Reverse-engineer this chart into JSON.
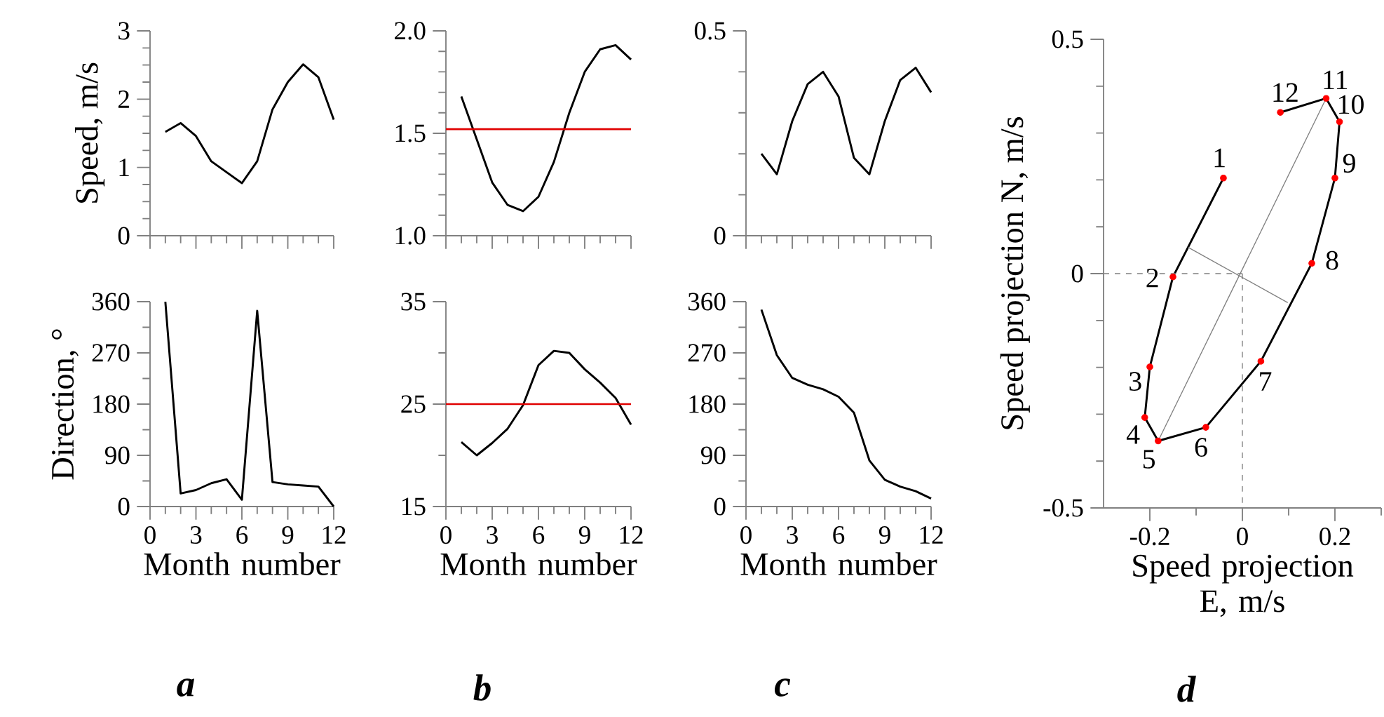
{
  "chart_data": [
    {
      "type": "line",
      "ylabel": "Speed, m/s",
      "x": [
        1,
        2,
        3,
        4,
        5,
        6,
        7,
        8,
        9,
        10,
        11,
        12
      ],
      "series": [
        {
          "color": "#000000",
          "values": [
            1.52,
            1.65,
            1.46,
            1.09,
            0.93,
            0.77,
            1.09,
            1.85,
            2.25,
            2.51,
            2.32,
            1.7
          ]
        }
      ],
      "xlim": [
        0,
        12
      ],
      "ylim": [
        0,
        3
      ],
      "xticks": [
        0,
        {
          "value": 1,
          "label": null
        },
        {
          "value": 2,
          "label": null
        },
        3,
        {
          "value": 4,
          "label": null
        },
        {
          "value": 5,
          "label": null
        },
        6,
        {
          "value": 7,
          "label": null
        },
        {
          "value": 8,
          "label": null
        },
        9,
        {
          "value": 10,
          "label": null
        },
        {
          "value": 11,
          "label": null
        },
        12
      ],
      "yticks": [
        0,
        {
          "value": 0.25,
          "label": null
        },
        {
          "value": 0.5,
          "label": null
        },
        {
          "value": 0.75,
          "label": null
        },
        1,
        {
          "value": 1.25,
          "label": null
        },
        {
          "value": 1.5,
          "label": null
        },
        {
          "value": 1.75,
          "label": null
        },
        2,
        {
          "value": 2.25,
          "label": null
        },
        {
          "value": 2.5,
          "label": null
        },
        {
          "value": 2.75,
          "label": null
        },
        3
      ],
      "tick_labels": "y"
    },
    {
      "type": "line",
      "x": [
        1,
        2,
        3,
        4,
        5,
        6,
        7,
        8,
        9,
        10,
        11,
        12
      ],
      "series": [
        {
          "color": "#000000",
          "values": [
            1.68,
            1.47,
            1.26,
            1.15,
            1.12,
            1.19,
            1.36,
            1.6,
            1.8,
            1.91,
            1.93,
            1.86
          ]
        }
      ],
      "xlim": [
        0,
        12
      ],
      "ylim": [
        1.0,
        2.0
      ],
      "xticks": [
        0,
        {
          "value": 1,
          "label": null
        },
        {
          "value": 2,
          "label": null
        },
        3,
        {
          "value": 4,
          "label": null
        },
        {
          "value": 5,
          "label": null
        },
        6,
        {
          "value": 7,
          "label": null
        },
        {
          "value": 8,
          "label": null
        },
        9,
        {
          "value": 10,
          "label": null
        },
        {
          "value": 11,
          "label": null
        },
        12
      ],
      "yticks": [
        {
          "value": 1.0,
          "label": "1.0"
        },
        {
          "value": 1.1,
          "label": null
        },
        {
          "value": 1.2,
          "label": null
        },
        {
          "value": 1.3,
          "label": null
        },
        {
          "value": 1.4,
          "label": null
        },
        1.5,
        {
          "value": 1.6,
          "label": null
        },
        {
          "value": 1.7,
          "label": null
        },
        {
          "value": 1.8,
          "label": null
        },
        {
          "value": 1.9,
          "label": null
        },
        {
          "value": 2.0,
          "label": "2.0"
        }
      ],
      "ref_lines": [
        {
          "axis": "y",
          "value": 1.52,
          "color": "#e00000"
        }
      ],
      "tick_labels": "y"
    },
    {
      "type": "line",
      "x": [
        1,
        2,
        3,
        4,
        5,
        6,
        7,
        8,
        9,
        10,
        11,
        12
      ],
      "series": [
        {
          "color": "#000000",
          "values": [
            0.2,
            0.15,
            0.28,
            0.37,
            0.4,
            0.34,
            0.19,
            0.15,
            0.28,
            0.38,
            0.41,
            0.35
          ]
        }
      ],
      "xlim": [
        0,
        12
      ],
      "ylim": [
        0,
        0.5
      ],
      "xticks": [
        0,
        {
          "value": 1,
          "label": null
        },
        {
          "value": 2,
          "label": null
        },
        3,
        {
          "value": 4,
          "label": null
        },
        {
          "value": 5,
          "label": null
        },
        6,
        {
          "value": 7,
          "label": null
        },
        {
          "value": 8,
          "label": null
        },
        9,
        {
          "value": 10,
          "label": null
        },
        {
          "value": 11,
          "label": null
        },
        12
      ],
      "yticks": [
        0,
        {
          "value": 0.1,
          "label": null
        },
        {
          "value": 0.2,
          "label": null
        },
        {
          "value": 0.3,
          "label": null
        },
        {
          "value": 0.4,
          "label": null
        },
        0.5
      ],
      "tick_labels": "y"
    },
    {
      "type": "line",
      "xlabel": "Speed projection E, m/s",
      "ylabel": "Speed projection N, m/s",
      "x": [
        -0.041,
        -0.15,
        -0.2,
        -0.211,
        -0.182,
        -0.079,
        0.04,
        0.15,
        0.2,
        0.21,
        0.181,
        0.082
      ],
      "series": [
        {
          "color": "#000000",
          "values": [
            0.204,
            -0.007,
            -0.199,
            -0.307,
            -0.357,
            -0.328,
            -0.187,
            0.022,
            0.204,
            0.324,
            0.374,
            0.344
          ]
        },
        {
          "type": "scatter",
          "marker": "circle",
          "color": "#ff0000",
          "values": [
            0.204,
            -0.007,
            -0.199,
            -0.307,
            -0.357,
            -0.328,
            -0.187,
            0.022,
            0.204,
            0.324,
            0.374,
            0.344
          ]
        },
        {
          "color": "#808080",
          "x": [
            -0.182,
            0.181
          ],
          "values": [
            -0.357,
            0.374
          ]
        },
        {
          "color": "#808080",
          "x": [
            -0.117,
            0.098
          ],
          "values": [
            0.056,
            -0.062
          ]
        },
        {
          "color": "#808080",
          "line_style": "dashed",
          "x": [
            -0.3,
            0
          ],
          "values": [
            0,
            0
          ]
        },
        {
          "color": "#808080",
          "line_style": "dashed",
          "x": [
            0,
            0
          ],
          "values": [
            0,
            -0.5
          ]
        }
      ],
      "xlim": [
        -0.3,
        0.3
      ],
      "ylim": [
        -0.5,
        0.5
      ],
      "xticks": [
        -0.2,
        {
          "value": -0.1,
          "label": null
        },
        0,
        {
          "value": 0.1,
          "label": null
        },
        0.2,
        {
          "value": 0.3,
          "label": null
        }
      ],
      "yticks": [
        -0.5,
        {
          "value": -0.4,
          "label": null
        },
        {
          "value": -0.3,
          "label": null
        },
        {
          "value": -0.2,
          "label": null
        },
        {
          "value": -0.1,
          "label": null
        },
        0,
        {
          "value": 0.1,
          "label": null
        },
        {
          "value": 0.2,
          "label": null
        },
        {
          "value": 0.3,
          "label": null
        },
        {
          "value": 0.4,
          "label": null
        },
        0.5
      ],
      "annotations": [
        "d",
        {
          "text": "1",
          "x": -0.041,
          "y": 0.204
        },
        {
          "text": "2",
          "x": -0.15,
          "y": -0.007
        },
        {
          "text": "3",
          "x": -0.2,
          "y": -0.199
        },
        {
          "text": "4",
          "x": -0.211,
          "y": -0.307
        },
        {
          "text": "5",
          "x": -0.182,
          "y": -0.357
        },
        {
          "text": "6",
          "x": -0.079,
          "y": -0.328
        },
        {
          "text": "7",
          "x": 0.04,
          "y": -0.187
        },
        {
          "text": "8",
          "x": 0.15,
          "y": 0.022
        },
        {
          "text": "9",
          "x": 0.2,
          "y": 0.204
        },
        {
          "text": "10",
          "x": 0.21,
          "y": 0.324
        },
        {
          "text": "11",
          "x": 0.181,
          "y": 0.374
        },
        {
          "text": "12",
          "x": 0.082,
          "y": 0.344
        }
      ]
    },
    {
      "type": "line",
      "xlabel": "Month number",
      "ylabel": "Direction, °",
      "x": [
        1,
        2,
        3,
        4,
        5,
        6,
        7,
        8,
        9,
        10,
        11,
        12
      ],
      "series": [
        {
          "color": "#000000",
          "values": [
            360,
            23,
            29,
            41,
            48,
            12,
            344,
            43,
            39,
            37,
            35,
            0
          ]
        }
      ],
      "xlim": [
        0,
        12
      ],
      "ylim": [
        0,
        360
      ],
      "xticks": [
        0,
        {
          "value": 1,
          "label": null
        },
        {
          "value": 2,
          "label": null
        },
        3,
        {
          "value": 4,
          "label": null
        },
        {
          "value": 5,
          "label": null
        },
        6,
        {
          "value": 7,
          "label": null
        },
        {
          "value": 8,
          "label": null
        },
        9,
        {
          "value": 10,
          "label": null
        },
        {
          "value": 11,
          "label": null
        },
        12
      ],
      "yticks": [
        0,
        {
          "value": 45,
          "label": null
        },
        90,
        {
          "value": 135,
          "label": null
        },
        180,
        {
          "value": 225,
          "label": null
        },
        270,
        {
          "value": 315,
          "label": null
        },
        360
      ],
      "annotations": [
        "a"
      ]
    },
    {
      "type": "line",
      "xlabel": "Month number",
      "x": [
        1,
        2,
        3,
        4,
        5,
        6,
        7,
        8,
        9,
        10,
        11,
        12
      ],
      "series": [
        {
          "color": "#000000",
          "values": [
            21.3,
            20.0,
            21.2,
            22.6,
            24.9,
            28.8,
            30.2,
            30.0,
            28.4,
            27.1,
            25.6,
            23.0
          ]
        }
      ],
      "xlim": [
        0,
        12
      ],
      "ylim": [
        15,
        35
      ],
      "xticks": [
        0,
        {
          "value": 1,
          "label": null
        },
        {
          "value": 2,
          "label": null
        },
        3,
        {
          "value": 4,
          "label": null
        },
        {
          "value": 5,
          "label": null
        },
        6,
        {
          "value": 7,
          "label": null
        },
        {
          "value": 8,
          "label": null
        },
        9,
        {
          "value": 10,
          "label": null
        },
        {
          "value": 11,
          "label": null
        },
        12
      ],
      "yticks": [
        15,
        {
          "value": 20,
          "label": null
        },
        25,
        {
          "value": 30,
          "label": null
        },
        35
      ],
      "ref_lines": [
        {
          "axis": "y",
          "value": 25,
          "color": "#e00000"
        }
      ],
      "annotations": [
        "b"
      ]
    },
    {
      "type": "line",
      "xlabel": "Month number",
      "x": [
        1,
        2,
        3,
        4,
        5,
        6,
        7,
        8,
        9,
        10,
        11,
        12
      ],
      "series": [
        {
          "color": "#000000",
          "values": [
            346,
            266,
            226,
            214,
            206,
            193,
            165,
            81,
            47,
            35,
            27,
            14
          ]
        }
      ],
      "xlim": [
        0,
        12
      ],
      "ylim": [
        0,
        360
      ],
      "xticks": [
        0,
        {
          "value": 1,
          "label": null
        },
        {
          "value": 2,
          "label": null
        },
        3,
        {
          "value": 4,
          "label": null
        },
        {
          "value": 5,
          "label": null
        },
        6,
        {
          "value": 7,
          "label": null
        },
        {
          "value": 8,
          "label": null
        },
        9,
        {
          "value": 10,
          "label": null
        },
        {
          "value": 11,
          "label": null
        },
        12
      ],
      "yticks": [
        0,
        {
          "value": 45,
          "label": null
        },
        90,
        {
          "value": 135,
          "label": null
        },
        180,
        {
          "value": 225,
          "label": null
        },
        270,
        {
          "value": 315,
          "label": null
        },
        360
      ],
      "annotations": [
        "c"
      ]
    }
  ]
}
